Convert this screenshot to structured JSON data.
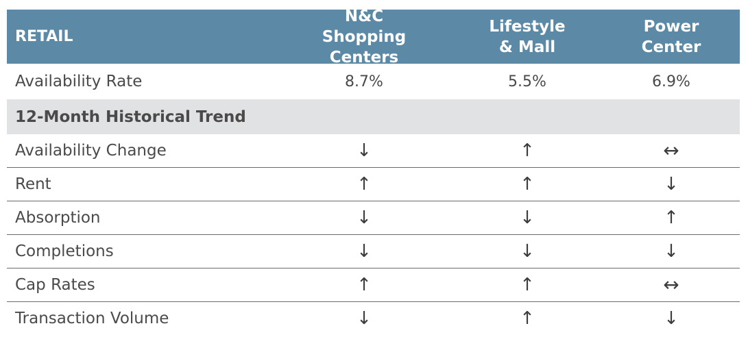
{
  "header": {
    "title": "RETAIL",
    "col1": "N&C  Shopping Centers",
    "col2": "Lifestyle & Mall",
    "col3": "Power Center"
  },
  "availability": {
    "label": "Availability Rate",
    "col1": "8.7%",
    "col2": "5.5%",
    "col3": "6.9%"
  },
  "section": {
    "title": "12-Month Historical Trend"
  },
  "trends": [
    {
      "label": "Availability Change",
      "arrows": [
        "down",
        "up",
        "both"
      ]
    },
    {
      "label": "Rent",
      "arrows": [
        "up",
        "up",
        "down"
      ]
    },
    {
      "label": "Absorption",
      "arrows": [
        "down",
        "down",
        "up"
      ]
    },
    {
      "label": "Completions",
      "arrows": [
        "down",
        "down",
        "down"
      ]
    },
    {
      "label": "Cap Rates",
      "arrows": [
        "up",
        "up",
        "both"
      ]
    },
    {
      "label": "Transaction Volume",
      "arrows": [
        "down",
        "up",
        "down"
      ]
    }
  ],
  "colors": {
    "header_bg": "#5c8aa6",
    "section_bg": "#e1e2e4",
    "text": "#4a4a4a"
  }
}
